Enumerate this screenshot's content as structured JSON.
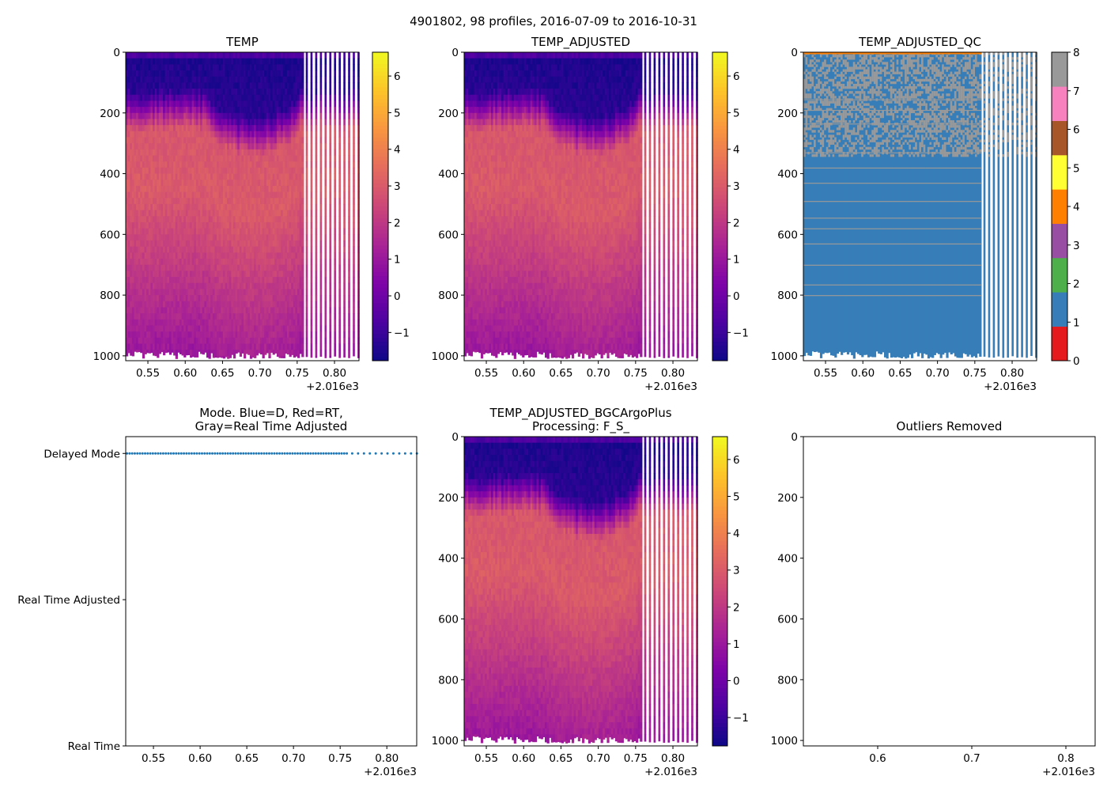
{
  "figure": {
    "title": "4901802, 98 profiles, 2016-07-09 to 2016-10-31"
  },
  "profiles": {
    "count": 98,
    "dense_count": 86,
    "dense_range": [
      2016.5203,
      2016.7585
    ],
    "sparse_start": 2016.7615,
    "sparse_step": 0.0063,
    "mode": "Delayed Mode"
  },
  "temperature_field_approx": {
    "depth_dbar": [
      0,
      8,
      20,
      130,
      250,
      450,
      1000
    ],
    "temp_degC": [
      5.5,
      -0.5,
      -1.5,
      -1.3,
      2.9,
      3.0,
      1.0
    ],
    "deeper_cold_layer": {
      "x_range": [
        2016.63,
        2016.75
      ],
      "extra_depth_dbar": 85
    }
  },
  "qc_field_approx": {
    "dominant_flag": 1,
    "mixed_flag": 8,
    "mixed_above_dbar": 340,
    "flag8_line_depths": [
      155,
      190,
      235,
      330,
      380,
      430,
      490,
      545,
      580,
      630,
      700,
      765,
      800
    ]
  },
  "colors": {
    "dots": "#1f77b4",
    "plasma": [
      "#0d0887",
      "#4c02a1",
      "#7e03a8",
      "#a92395",
      "#cc4778",
      "#e56b5d",
      "#f89540",
      "#fdc328",
      "#f0f921"
    ],
    "qc_set1": [
      "#e41a1c",
      "#377eb8",
      "#4daf4a",
      "#984ea3",
      "#ff7f00",
      "#ffff33",
      "#a65628",
      "#f781bf",
      "#999999"
    ]
  },
  "chart_data": [
    {
      "type": "heatmap",
      "title": [
        "TEMP"
      ],
      "xlim": [
        0.5203,
        0.8328
      ],
      "xticks": [
        0.55,
        0.6,
        0.65,
        0.7,
        0.75,
        0.8
      ],
      "xtick_labels": [
        "0.55",
        "0.60",
        "0.65",
        "0.70",
        "0.75",
        "0.80"
      ],
      "x_offset_label": "+2.016e3",
      "ylim": [
        1016,
        0
      ],
      "yticks": [
        0,
        200,
        400,
        600,
        800,
        1000
      ],
      "ytick_labels": [
        "0",
        "200",
        "400",
        "600",
        "800",
        "1000"
      ],
      "colorbar": {
        "cmap": "plasma_r",
        "range": [
          -1.77,
          6.65
        ],
        "ticks": [
          -1,
          0,
          1,
          2,
          3,
          4,
          5,
          6
        ],
        "tick_labels": [
          "−1",
          "0",
          "1",
          "2",
          "3",
          "4",
          "5",
          "6"
        ]
      }
    },
    {
      "type": "heatmap",
      "title": [
        "TEMP_ADJUSTED"
      ],
      "xlim": [
        0.5203,
        0.8328
      ],
      "xticks": [
        0.55,
        0.6,
        0.65,
        0.7,
        0.75,
        0.8
      ],
      "xtick_labels": [
        "0.55",
        "0.60",
        "0.65",
        "0.70",
        "0.75",
        "0.80"
      ],
      "x_offset_label": "+2.016e3",
      "ylim": [
        1016,
        0
      ],
      "yticks": [
        0,
        200,
        400,
        600,
        800,
        1000
      ],
      "ytick_labels": [
        "0",
        "200",
        "400",
        "600",
        "800",
        "1000"
      ],
      "colorbar": {
        "cmap": "plasma_r",
        "range": [
          -1.77,
          6.65
        ],
        "ticks": [
          -1,
          0,
          1,
          2,
          3,
          4,
          5,
          6
        ],
        "tick_labels": [
          "−1",
          "0",
          "1",
          "2",
          "3",
          "4",
          "5",
          "6"
        ]
      }
    },
    {
      "type": "heatmap",
      "title": [
        "TEMP_ADJUSTED_QC"
      ],
      "xlim": [
        0.5203,
        0.8328
      ],
      "xticks": [
        0.55,
        0.6,
        0.65,
        0.7,
        0.75,
        0.8
      ],
      "xtick_labels": [
        "0.55",
        "0.60",
        "0.65",
        "0.70",
        "0.75",
        "0.80"
      ],
      "x_offset_label": "+2.016e3",
      "ylim": [
        1016,
        0
      ],
      "yticks": [
        0,
        200,
        400,
        600,
        800,
        1000
      ],
      "ytick_labels": [
        "0",
        "200",
        "400",
        "600",
        "800",
        "1000"
      ],
      "colorbar": {
        "cmap": "Set1",
        "range": [
          0,
          8
        ],
        "ticks": [
          0,
          1,
          2,
          3,
          4,
          5,
          6,
          7,
          8
        ],
        "tick_labels": [
          "0",
          "1",
          "2",
          "3",
          "4",
          "5",
          "6",
          "7",
          "8"
        ]
      }
    },
    {
      "type": "scatter",
      "title": [
        "Mode. Blue=D, Red=RT,",
        "Gray=Real Time Adjusted"
      ],
      "xlim": [
        0.5203,
        0.832
      ],
      "xticks": [
        0.55,
        0.6,
        0.65,
        0.7,
        0.75,
        0.8
      ],
      "xtick_labels": [
        "0.55",
        "0.60",
        "0.65",
        "0.70",
        "0.75",
        "0.80"
      ],
      "x_offset_label": "+2.016e3",
      "ylim": [
        0,
        2.115
      ],
      "yticks": [
        0,
        1,
        2
      ],
      "ytick_labels": [
        "Real Time",
        "Real Time Adjusted",
        "Delayed Mode"
      ],
      "y_value": 2
    },
    {
      "type": "heatmap",
      "title": [
        "TEMP_ADJUSTED_BGCArgoPlus",
        "Processing: F_S_"
      ],
      "xlim": [
        0.5203,
        0.8328
      ],
      "xticks": [
        0.55,
        0.6,
        0.65,
        0.7,
        0.75,
        0.8
      ],
      "xtick_labels": [
        "0.55",
        "0.60",
        "0.65",
        "0.70",
        "0.75",
        "0.80"
      ],
      "x_offset_label": "+2.016e3",
      "ylim": [
        1018,
        0
      ],
      "yticks": [
        0,
        200,
        400,
        600,
        800,
        1000
      ],
      "ytick_labels": [
        "0",
        "200",
        "400",
        "600",
        "800",
        "1000"
      ],
      "colorbar": {
        "cmap": "plasma_r",
        "range": [
          -1.77,
          6.62
        ],
        "ticks": [
          -1,
          0,
          1,
          2,
          3,
          4,
          5,
          6
        ],
        "tick_labels": [
          "−1",
          "0",
          "1",
          "2",
          "3",
          "4",
          "5",
          "6"
        ]
      }
    },
    {
      "type": "scatter",
      "title": [
        "Outliers Removed"
      ],
      "xlim": [
        0.521,
        0.8311
      ],
      "xticks": [
        0.6,
        0.7,
        0.8
      ],
      "xtick_labels": [
        "0.6",
        "0.7",
        "0.8"
      ],
      "x_offset_label": "+2.016e3",
      "ylim": [
        1018,
        0
      ],
      "yticks": [
        0,
        200,
        400,
        600,
        800,
        1000
      ],
      "ytick_labels": [
        "0",
        "200",
        "400",
        "600",
        "800",
        "1000"
      ],
      "points": []
    }
  ]
}
